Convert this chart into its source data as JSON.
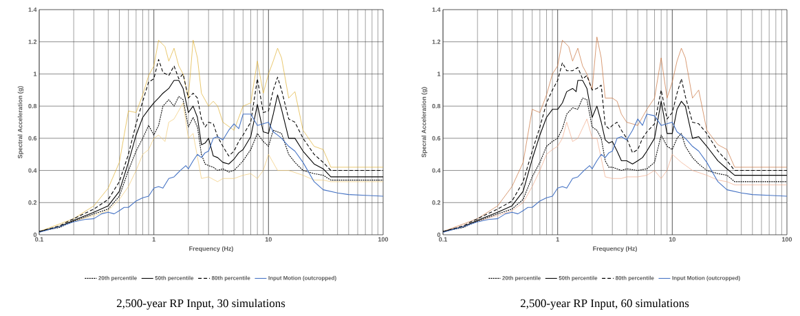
{
  "chart_data": [
    {
      "type": "line",
      "title": "2,500-year RP Input, 30 simulations",
      "xlabel": "Frequency (Hz)",
      "ylabel": "Spectral Acceleration (g)",
      "log": "x",
      "xlim": [
        0.1,
        100
      ],
      "ylim": [
        0,
        1.4
      ],
      "xticks": [
        0.1,
        1,
        10,
        100
      ],
      "yticks": [
        0,
        0.2,
        0.4,
        0.6,
        0.8,
        1,
        1.2,
        1.4
      ],
      "grid": true,
      "legend": "bottom",
      "marker": "none",
      "series": [
        {
          "color": "#e0b030",
          "line_style": "solid",
          "x": [
            0.1,
            0.2,
            0.3,
            0.4,
            0.5,
            0.6,
            0.7,
            0.8,
            0.9,
            1,
            1.1,
            1.25,
            1.35,
            1.5,
            1.65,
            1.8,
            2,
            2.2,
            2.4,
            2.6,
            3,
            3.3,
            3.6,
            4,
            5,
            6,
            7,
            8,
            9,
            10,
            11,
            12,
            13,
            15,
            17,
            20,
            25,
            30,
            35,
            100
          ],
          "values": [
            0.02,
            0.1,
            0.18,
            0.29,
            0.45,
            0.77,
            0.76,
            0.87,
            0.99,
            1.05,
            1.21,
            1.17,
            1.08,
            1.16,
            1.05,
            1.0,
            0.85,
            1.21,
            1.1,
            0.88,
            0.8,
            0.83,
            0.8,
            0.7,
            0.65,
            0.8,
            0.82,
            1.08,
            0.88,
            1.0,
            1.08,
            1.16,
            1.1,
            0.85,
            0.89,
            0.65,
            0.55,
            0.53,
            0.42,
            0.42
          ]
        },
        {
          "color": "#f0c870",
          "line_style": "solid",
          "x": [
            0.1,
            0.2,
            0.3,
            0.4,
            0.5,
            0.6,
            0.7,
            0.8,
            0.9,
            1,
            1.1,
            1.25,
            1.35,
            1.5,
            1.8,
            2,
            2.2,
            2.6,
            3,
            3.6,
            4,
            5,
            6,
            7,
            8,
            9,
            10,
            12,
            15,
            20,
            25,
            30,
            35,
            100
          ],
          "values": [
            0.015,
            0.085,
            0.12,
            0.15,
            0.22,
            0.3,
            0.4,
            0.5,
            0.53,
            0.6,
            0.62,
            0.58,
            0.7,
            0.72,
            0.82,
            0.6,
            0.63,
            0.35,
            0.36,
            0.33,
            0.35,
            0.35,
            0.37,
            0.38,
            0.35,
            0.4,
            0.5,
            0.4,
            0.4,
            0.37,
            0.34,
            0.34,
            0.33,
            0.33
          ]
        },
        {
          "name": "20th percentile",
          "color": "#000000",
          "line_style": "dotted",
          "x": [
            0.1,
            0.15,
            0.2,
            0.3,
            0.4,
            0.5,
            0.6,
            0.7,
            0.8,
            0.9,
            1,
            1.1,
            1.2,
            1.35,
            1.5,
            1.65,
            1.8,
            2,
            2.2,
            2.4,
            2.6,
            2.8,
            3,
            3.3,
            3.6,
            4,
            4.5,
            5,
            5.5,
            6,
            7,
            8,
            9,
            10,
            11,
            12,
            13,
            15,
            17,
            20,
            25,
            30,
            35,
            50,
            100
          ],
          "values": [
            0.02,
            0.045,
            0.085,
            0.13,
            0.16,
            0.24,
            0.4,
            0.52,
            0.6,
            0.68,
            0.62,
            0.68,
            0.8,
            0.84,
            0.8,
            0.86,
            0.84,
            0.67,
            0.73,
            0.67,
            0.5,
            0.44,
            0.43,
            0.42,
            0.4,
            0.41,
            0.39,
            0.4,
            0.43,
            0.46,
            0.53,
            0.63,
            0.58,
            0.55,
            0.65,
            0.64,
            0.63,
            0.5,
            0.45,
            0.4,
            0.38,
            0.37,
            0.34,
            0.34,
            0.34
          ]
        },
        {
          "name": "50th percentile",
          "color": "#000000",
          "line_style": "solid",
          "x": [
            0.1,
            0.15,
            0.2,
            0.3,
            0.4,
            0.5,
            0.6,
            0.7,
            0.8,
            0.9,
            1,
            1.1,
            1.2,
            1.35,
            1.5,
            1.65,
            1.8,
            2,
            2.2,
            2.4,
            2.6,
            2.8,
            3,
            3.3,
            3.6,
            4,
            4.5,
            5,
            5.5,
            6,
            7,
            8,
            9,
            10,
            11,
            12,
            13,
            15,
            17,
            20,
            25,
            30,
            35,
            50,
            100
          ],
          "values": [
            0.02,
            0.05,
            0.09,
            0.14,
            0.18,
            0.27,
            0.45,
            0.62,
            0.73,
            0.78,
            0.82,
            0.85,
            0.88,
            0.91,
            0.96,
            0.96,
            0.91,
            0.76,
            0.8,
            0.73,
            0.56,
            0.57,
            0.6,
            0.49,
            0.48,
            0.45,
            0.44,
            0.47,
            0.51,
            0.53,
            0.61,
            0.81,
            0.64,
            0.63,
            0.75,
            0.87,
            0.78,
            0.6,
            0.6,
            0.52,
            0.44,
            0.41,
            0.36,
            0.36,
            0.36
          ]
        },
        {
          "name": "80th percentile",
          "color": "#000000",
          "line_style": "dashed",
          "x": [
            0.1,
            0.15,
            0.2,
            0.3,
            0.4,
            0.5,
            0.6,
            0.7,
            0.8,
            0.9,
            1,
            1.1,
            1.2,
            1.35,
            1.5,
            1.65,
            1.8,
            2,
            2.2,
            2.4,
            2.6,
            2.8,
            3,
            3.3,
            3.6,
            4,
            4.5,
            5,
            5.5,
            6,
            7,
            8,
            9,
            10,
            11,
            12,
            13,
            15,
            17,
            20,
            25,
            30,
            35,
            50,
            100
          ],
          "values": [
            0.02,
            0.055,
            0.1,
            0.16,
            0.22,
            0.33,
            0.5,
            0.69,
            0.83,
            0.95,
            0.97,
            1.09,
            1.01,
            0.99,
            1.05,
            0.97,
            1.0,
            0.85,
            0.88,
            0.85,
            0.72,
            0.67,
            0.7,
            0.69,
            0.61,
            0.55,
            0.49,
            0.52,
            0.58,
            0.62,
            0.7,
            0.97,
            0.76,
            0.77,
            0.9,
            0.98,
            0.9,
            0.72,
            0.7,
            0.6,
            0.5,
            0.45,
            0.4,
            0.4,
            0.4
          ]
        },
        {
          "name": "Input Motion (outcropped)",
          "color": "#4472c4",
          "line_style": "solid",
          "x": [
            0.1,
            0.15,
            0.2,
            0.25,
            0.3,
            0.35,
            0.4,
            0.45,
            0.5,
            0.55,
            0.6,
            0.7,
            0.8,
            0.9,
            1,
            1.1,
            1.2,
            1.35,
            1.5,
            1.7,
            1.9,
            2,
            2.2,
            2.4,
            2.6,
            2.8,
            3,
            3.3,
            3.6,
            4,
            4.5,
            5,
            5.5,
            6,
            7,
            8,
            9,
            10,
            11,
            12,
            13,
            15,
            17,
            20,
            25,
            30,
            40,
            50,
            70,
            100
          ],
          "values": [
            0.015,
            0.05,
            0.08,
            0.095,
            0.1,
            0.13,
            0.14,
            0.13,
            0.15,
            0.17,
            0.17,
            0.21,
            0.23,
            0.24,
            0.29,
            0.3,
            0.29,
            0.35,
            0.36,
            0.4,
            0.43,
            0.41,
            0.46,
            0.5,
            0.48,
            0.51,
            0.52,
            0.6,
            0.61,
            0.59,
            0.65,
            0.69,
            0.66,
            0.75,
            0.75,
            0.68,
            0.69,
            0.7,
            0.64,
            0.62,
            0.6,
            0.55,
            0.52,
            0.45,
            0.33,
            0.28,
            0.26,
            0.25,
            0.245,
            0.24
          ]
        }
      ]
    },
    {
      "type": "line",
      "title": "2,500-year RP Input, 60 simulations",
      "xlabel": "Frequency (Hz)",
      "ylabel": "Specral Acceleration (g)",
      "log": "x",
      "xlim": [
        0.1,
        100
      ],
      "ylim": [
        0,
        1.4
      ],
      "xticks": [
        0.1,
        1,
        10,
        100
      ],
      "yticks": [
        0,
        0.2,
        0.4,
        0.6,
        0.8,
        1,
        1.2,
        1.4
      ],
      "grid": true,
      "legend": "bottom",
      "marker": "none",
      "series": [
        {
          "color": "#c8703a",
          "line_style": "solid",
          "x": [
            0.1,
            0.2,
            0.3,
            0.4,
            0.5,
            0.6,
            0.7,
            0.8,
            0.9,
            1,
            1.1,
            1.25,
            1.35,
            1.5,
            1.65,
            1.8,
            2,
            2.2,
            2.4,
            2.6,
            3,
            3.3,
            3.6,
            4,
            5,
            6,
            7,
            8,
            9,
            10,
            11,
            12,
            13,
            15,
            17,
            20,
            25,
            30,
            35,
            100
          ],
          "values": [
            0.02,
            0.1,
            0.18,
            0.3,
            0.45,
            0.78,
            0.76,
            0.87,
            1.0,
            1.05,
            1.21,
            1.17,
            1.08,
            1.16,
            1.05,
            1.0,
            0.9,
            1.23,
            1.1,
            0.85,
            0.85,
            0.83,
            0.75,
            0.7,
            0.68,
            0.78,
            0.85,
            1.1,
            0.85,
            0.95,
            1.08,
            1.16,
            1.1,
            0.85,
            0.9,
            0.65,
            0.56,
            0.53,
            0.42,
            0.42
          ]
        },
        {
          "color": "#f0a888",
          "line_style": "solid",
          "x": [
            0.1,
            0.2,
            0.3,
            0.4,
            0.5,
            0.6,
            0.7,
            0.8,
            0.9,
            1,
            1.1,
            1.2,
            1.35,
            1.5,
            1.8,
            2,
            2.2,
            2.6,
            3,
            3.6,
            4,
            5,
            6,
            7,
            8,
            9,
            10,
            12,
            15,
            20,
            25,
            30,
            35,
            100
          ],
          "values": [
            0.015,
            0.085,
            0.12,
            0.15,
            0.2,
            0.3,
            0.4,
            0.5,
            0.53,
            0.55,
            0.6,
            0.7,
            0.58,
            0.6,
            0.72,
            0.6,
            0.6,
            0.36,
            0.35,
            0.35,
            0.36,
            0.36,
            0.37,
            0.4,
            0.35,
            0.4,
            0.5,
            0.45,
            0.4,
            0.37,
            0.34,
            0.33,
            0.31,
            0.31
          ]
        },
        {
          "name": "20th percentile",
          "color": "#000000",
          "line_style": "dotted",
          "x": [
            0.1,
            0.15,
            0.2,
            0.3,
            0.4,
            0.5,
            0.6,
            0.7,
            0.8,
            0.9,
            1,
            1.1,
            1.2,
            1.35,
            1.5,
            1.65,
            1.8,
            2,
            2.2,
            2.4,
            2.6,
            2.8,
            3,
            3.6,
            4,
            5,
            6,
            7,
            8,
            9,
            10,
            11,
            12,
            13,
            15,
            17,
            20,
            25,
            30,
            35,
            50,
            100
          ],
          "values": [
            0.02,
            0.045,
            0.085,
            0.13,
            0.16,
            0.22,
            0.36,
            0.45,
            0.55,
            0.58,
            0.6,
            0.66,
            0.75,
            0.79,
            0.78,
            0.85,
            0.84,
            0.67,
            0.65,
            0.6,
            0.46,
            0.42,
            0.42,
            0.4,
            0.41,
            0.4,
            0.41,
            0.45,
            0.62,
            0.55,
            0.53,
            0.6,
            0.63,
            0.55,
            0.48,
            0.44,
            0.4,
            0.38,
            0.37,
            0.33,
            0.33,
            0.33
          ]
        },
        {
          "name": "50th percentile",
          "color": "#000000",
          "line_style": "solid",
          "x": [
            0.1,
            0.15,
            0.2,
            0.3,
            0.4,
            0.5,
            0.6,
            0.7,
            0.8,
            0.9,
            1,
            1.1,
            1.2,
            1.35,
            1.45,
            1.5,
            1.65,
            1.8,
            2,
            2.2,
            2.4,
            2.6,
            2.8,
            3,
            3.3,
            3.6,
            4,
            4.5,
            5,
            5.5,
            6,
            7,
            8,
            9,
            10,
            11,
            12,
            13,
            15,
            17,
            20,
            25,
            30,
            35,
            50,
            100
          ],
          "values": [
            0.02,
            0.05,
            0.09,
            0.14,
            0.18,
            0.27,
            0.47,
            0.62,
            0.73,
            0.78,
            0.78,
            0.82,
            0.89,
            0.91,
            0.89,
            0.96,
            0.96,
            0.91,
            0.73,
            0.8,
            0.7,
            0.59,
            0.57,
            0.58,
            0.52,
            0.46,
            0.46,
            0.44,
            0.46,
            0.48,
            0.52,
            0.6,
            0.83,
            0.63,
            0.63,
            0.78,
            0.83,
            0.8,
            0.6,
            0.61,
            0.55,
            0.46,
            0.41,
            0.37,
            0.37,
            0.37
          ]
        },
        {
          "name": "80th percentile",
          "color": "#000000",
          "line_style": "dashed",
          "x": [
            0.1,
            0.15,
            0.2,
            0.3,
            0.4,
            0.5,
            0.6,
            0.7,
            0.8,
            0.9,
            1,
            1.1,
            1.2,
            1.35,
            1.5,
            1.65,
            1.8,
            2,
            2.2,
            2.4,
            2.6,
            2.8,
            3,
            3.3,
            3.6,
            4,
            4.5,
            5,
            5.5,
            6,
            7,
            8,
            9,
            10,
            11,
            12,
            13,
            15,
            17,
            20,
            25,
            30,
            35,
            50,
            100
          ],
          "values": [
            0.02,
            0.055,
            0.1,
            0.16,
            0.21,
            0.33,
            0.52,
            0.67,
            0.82,
            0.9,
            0.96,
            1.07,
            1.02,
            1.02,
            1.04,
            0.97,
            0.99,
            0.9,
            0.91,
            0.93,
            0.68,
            0.66,
            0.68,
            0.7,
            0.65,
            0.6,
            0.51,
            0.53,
            0.6,
            0.64,
            0.69,
            0.9,
            0.72,
            0.76,
            0.88,
            0.97,
            0.86,
            0.7,
            0.69,
            0.63,
            0.52,
            0.46,
            0.4,
            0.4,
            0.4
          ]
        },
        {
          "name": "Input Motion (outcropped)",
          "color": "#4472c4",
          "line_style": "solid",
          "x": [
            0.1,
            0.15,
            0.2,
            0.25,
            0.3,
            0.35,
            0.4,
            0.45,
            0.5,
            0.55,
            0.6,
            0.7,
            0.8,
            0.9,
            1,
            1.1,
            1.2,
            1.35,
            1.5,
            1.7,
            1.9,
            2,
            2.2,
            2.4,
            2.6,
            2.8,
            3,
            3.3,
            3.6,
            4,
            4.5,
            5,
            5.5,
            6,
            7,
            8,
            9,
            10,
            11,
            12,
            13,
            15,
            17,
            20,
            25,
            30,
            40,
            50,
            70,
            100
          ],
          "values": [
            0.015,
            0.05,
            0.08,
            0.095,
            0.1,
            0.13,
            0.14,
            0.13,
            0.15,
            0.17,
            0.17,
            0.21,
            0.23,
            0.24,
            0.29,
            0.3,
            0.29,
            0.35,
            0.36,
            0.4,
            0.43,
            0.41,
            0.46,
            0.5,
            0.48,
            0.51,
            0.52,
            0.6,
            0.61,
            0.59,
            0.65,
            0.72,
            0.68,
            0.75,
            0.74,
            0.68,
            0.69,
            0.7,
            0.64,
            0.62,
            0.6,
            0.55,
            0.52,
            0.45,
            0.33,
            0.28,
            0.26,
            0.25,
            0.245,
            0.24
          ]
        }
      ]
    }
  ]
}
